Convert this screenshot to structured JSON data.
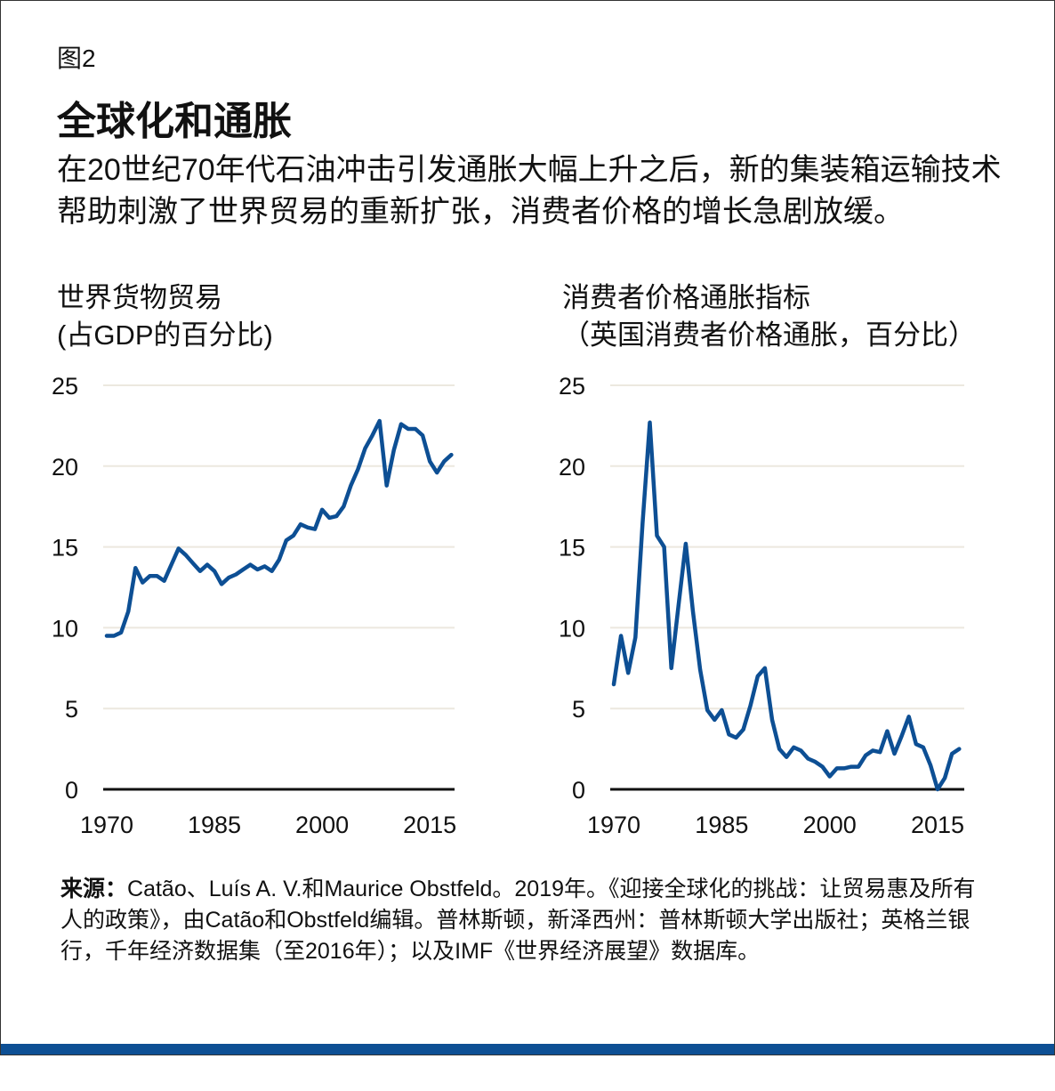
{
  "figure_label": "图2",
  "title": "全球化和通胀",
  "subtitle": "在20世纪70年代石油冲击引发通胀大幅上升之后，新的集装箱运输技术帮助刺激了世界贸易的重新扩张，消费者价格的增长急剧放缓。",
  "source_label": "来源：",
  "source_text": "Catão、Luís A. V.和Maurice Obstfeld。2019年。《迎接全球化的挑战：让贸易惠及所有人的政策》，由Catão和Obstfeld编辑。普林斯顿，新泽西州：普林斯顿大学出版社；英格兰银行，千年经济数据集（至2016年）；以及IMF《世界经济展望》数据库。",
  "colors": {
    "line": "#0d4f94",
    "grid": "#ece8df",
    "axis": "#111111",
    "bottom_bar": "#0d4f94"
  },
  "chart_data": [
    {
      "type": "line",
      "title": "世界货物贸易",
      "subtitle": "(占GDP的百分比)",
      "xlabel": "",
      "ylabel": "",
      "ylim": [
        0,
        25
      ],
      "yticks": [
        "0",
        "5",
        "10",
        "15",
        "20",
        "25"
      ],
      "xticks": [
        "1970",
        "1985",
        "2000",
        "2015"
      ],
      "grid": true,
      "x_start": 1970,
      "values": [
        9.5,
        9.5,
        9.7,
        11.0,
        13.7,
        12.8,
        13.2,
        13.2,
        12.9,
        13.9,
        14.9,
        14.5,
        14.0,
        13.5,
        13.9,
        13.5,
        12.7,
        13.1,
        13.3,
        13.6,
        13.9,
        13.6,
        13.8,
        13.5,
        14.2,
        15.4,
        15.7,
        16.4,
        16.2,
        16.1,
        17.3,
        16.8,
        16.9,
        17.5,
        18.8,
        19.8,
        21.1,
        21.9,
        22.8,
        18.8,
        21.0,
        22.6,
        22.3,
        22.3,
        21.9,
        20.3,
        19.6,
        20.3,
        20.7
      ]
    },
    {
      "type": "line",
      "title": "消费者价格通胀指标",
      "subtitle": "（英国消费者价格通胀，百分比）",
      "xlabel": "",
      "ylabel": "",
      "ylim": [
        0,
        25
      ],
      "yticks": [
        "0",
        "5",
        "10",
        "15",
        "20",
        "25"
      ],
      "xticks": [
        "1970",
        "1985",
        "2000",
        "2015"
      ],
      "grid": true,
      "x_start": 1970,
      "values": [
        6.5,
        9.5,
        7.2,
        9.4,
        16.5,
        22.7,
        15.7,
        15.0,
        7.5,
        11.4,
        15.2,
        11.0,
        7.4,
        4.9,
        4.3,
        4.9,
        3.4,
        3.2,
        3.7,
        5.2,
        7.0,
        7.5,
        4.3,
        2.5,
        2.0,
        2.6,
        2.4,
        1.9,
        1.7,
        1.4,
        0.8,
        1.3,
        1.3,
        1.4,
        1.4,
        2.1,
        2.4,
        2.3,
        3.6,
        2.2,
        3.3,
        4.5,
        2.8,
        2.6,
        1.5,
        0.0,
        0.7,
        2.2,
        2.5
      ]
    }
  ]
}
